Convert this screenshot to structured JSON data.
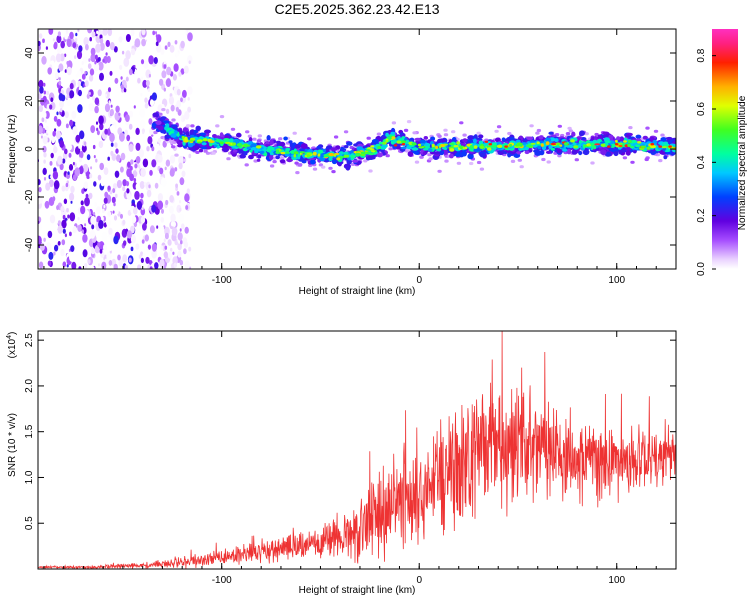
{
  "chart_data": [
    {
      "type": "heatmap",
      "title": "C2E5.2025.362.23.42.E13",
      "xlabel": "Height of straight line (km)",
      "ylabel": "Frequency (Hz)",
      "xlim": [
        -193,
        130
      ],
      "ylim": [
        -50,
        50
      ],
      "xticks": [
        -100,
        0,
        100
      ],
      "yticks": [
        -40,
        -20,
        0,
        20,
        40
      ],
      "xtick_labels": [
        "-100",
        "0",
        "100"
      ],
      "ytick_labels": [
        "-40",
        "-20",
        "0",
        "20",
        "40"
      ],
      "description_series": {
        "noise_region_end_km": -122,
        "band_center_hz": [
          {
            "x": -130,
            "y": 10
          },
          {
            "x": -120,
            "y": 4
          },
          {
            "x": -100,
            "y": 3
          },
          {
            "x": -80,
            "y": 0
          },
          {
            "x": -60,
            "y": -2
          },
          {
            "x": -40,
            "y": -3
          },
          {
            "x": -20,
            "y": 0
          },
          {
            "x": -15,
            "y": 5
          },
          {
            "x": 0,
            "y": 1
          },
          {
            "x": 20,
            "y": 1
          },
          {
            "x": 40,
            "y": 1
          },
          {
            "x": 60,
            "y": 2
          },
          {
            "x": 80,
            "y": 2
          },
          {
            "x": 100,
            "y": 2
          },
          {
            "x": 128,
            "y": 1
          }
        ]
      },
      "colorbar": {
        "label": "Normalized spectral amplitude",
        "range": [
          0,
          0.9
        ],
        "ticks": [
          0,
          0.2,
          0.4,
          0.6,
          0.8
        ],
        "tick_labels": [
          "0.0",
          "0.2",
          "0.4",
          "0.6",
          "0.8"
        ]
      }
    },
    {
      "type": "line",
      "color": "#ee3333",
      "xlabel": "Height of straight line (km)",
      "ylabel": "SNR (10 * v/v)",
      "multiplier_label": "(x10",
      "multiplier_exp": "4",
      "multiplier_close": ")",
      "xlim": [
        -193,
        130
      ],
      "ylim": [
        0,
        2.6
      ],
      "xticks": [
        -100,
        0,
        100
      ],
      "yticks": [
        0.5,
        1.0,
        1.5,
        2.0,
        2.5
      ],
      "xtick_labels": [
        "-100",
        "0",
        "100"
      ],
      "ytick_labels": [
        "0.5",
        "1.0",
        "1.5",
        "2.0",
        "2.5"
      ],
      "envelope": {
        "x": [
          -193,
          -160,
          -140,
          -120,
          -100,
          -80,
          -60,
          -40,
          -30,
          -20,
          -10,
          0,
          10,
          20,
          30,
          40,
          50,
          60,
          70,
          80,
          90,
          100,
          110,
          120,
          130
        ],
        "mean": [
          0.02,
          0.02,
          0.04,
          0.07,
          0.12,
          0.18,
          0.25,
          0.32,
          0.42,
          0.55,
          0.7,
          0.85,
          1.0,
          1.15,
          1.25,
          1.25,
          1.3,
          1.3,
          1.2,
          1.2,
          1.2,
          1.15,
          1.2,
          1.2,
          1.25
        ],
        "amp": [
          0.01,
          0.02,
          0.03,
          0.06,
          0.08,
          0.12,
          0.15,
          0.2,
          0.35,
          0.45,
          0.5,
          0.55,
          0.6,
          0.7,
          0.7,
          0.7,
          0.6,
          0.6,
          0.55,
          0.45,
          0.45,
          0.4,
          0.35,
          0.3,
          0.3
        ]
      },
      "peak": {
        "x": 42,
        "y": 2.6
      }
    }
  ]
}
